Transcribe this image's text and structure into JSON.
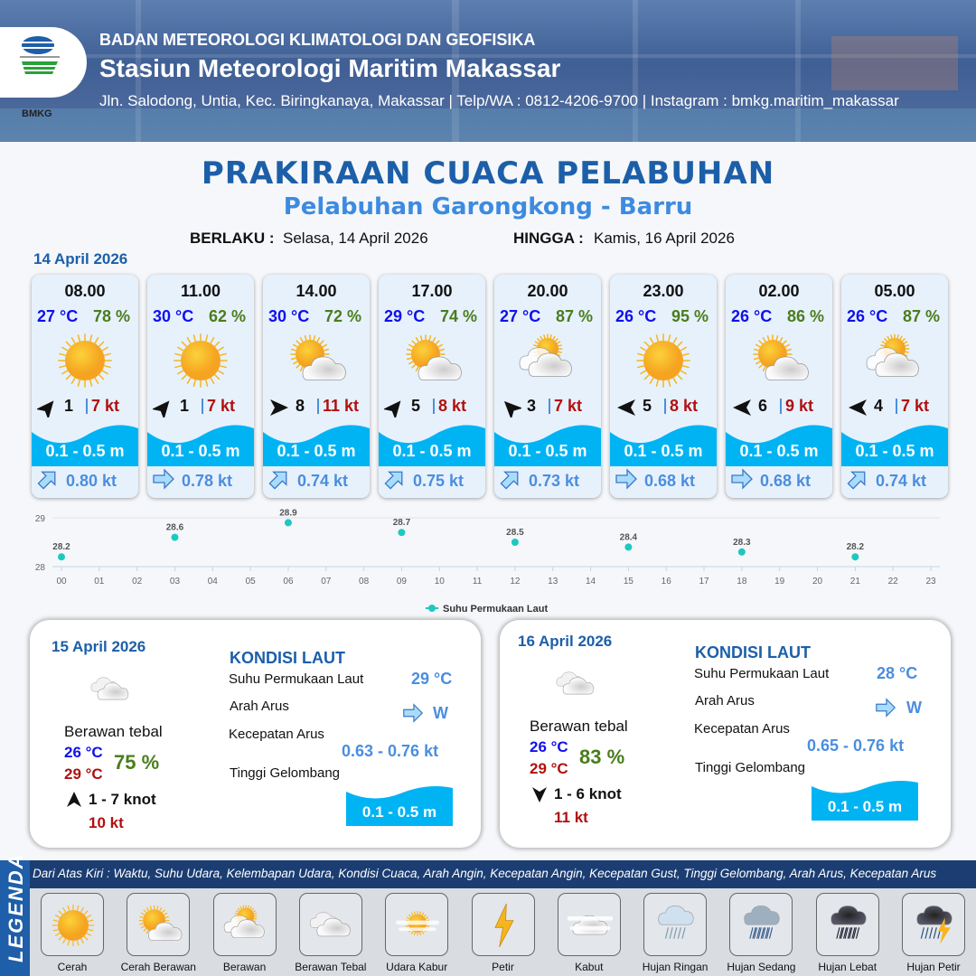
{
  "header": {
    "agency": "BADAN METEOROLOGI KLIMATOLOGI DAN GEOFISIKA",
    "station": "Stasiun Meteorologi Maritim Makassar",
    "contact": "Jln. Salodong, Untia, Kec. Biringkanaya, Makassar | Telp/WA : 0812-4206-9700 | Instagram : bmkg.maritim_makassar",
    "logo_text": "BMKG"
  },
  "title": "PRAKIRAAN CUACA PELABUHAN",
  "subtitle": "Pelabuhan Garongkong - Barru",
  "validity": {
    "from_label": "BERLAKU :",
    "from": "Selasa, 14 April 2026",
    "to_label": "HINGGA :",
    "to": "Kamis, 16 April 2026"
  },
  "day1_label": "14 April 2026",
  "forecasts": [
    {
      "time": "08.00",
      "temp": "27 °C",
      "hum": "78 %",
      "cond": "cerah",
      "wind_dir": "NE",
      "wind": "1",
      "gust": "7 kt",
      "wave": "0.1 - 0.5 m",
      "cur_dir": "SW",
      "cur": "0.80 kt"
    },
    {
      "time": "11.00",
      "temp": "30 °C",
      "hum": "62 %",
      "cond": "cerah",
      "wind_dir": "NE",
      "wind": "1",
      "gust": "7 kt",
      "wave": "0.1 - 0.5 m",
      "cur_dir": "W",
      "cur": "0.78 kt"
    },
    {
      "time": "14.00",
      "temp": "30 °C",
      "hum": "72 %",
      "cond": "cerah-berawan",
      "wind_dir": "E",
      "wind": "8",
      "gust": "11 kt",
      "wave": "0.1 - 0.5 m",
      "cur_dir": "SW",
      "cur": "0.74 kt"
    },
    {
      "time": "17.00",
      "temp": "29 °C",
      "hum": "74 %",
      "cond": "cerah-berawan",
      "wind_dir": "NE",
      "wind": "5",
      "gust": "8 kt",
      "wave": "0.1 - 0.5 m",
      "cur_dir": "SW",
      "cur": "0.75 kt"
    },
    {
      "time": "20.00",
      "temp": "27 °C",
      "hum": "87 %",
      "cond": "berawan",
      "wind_dir": "NW",
      "wind": "3",
      "gust": "7 kt",
      "wave": "0.1 - 0.5 m",
      "cur_dir": "SW",
      "cur": "0.73 kt"
    },
    {
      "time": "23.00",
      "temp": "26 °C",
      "hum": "95 %",
      "cond": "cerah",
      "wind_dir": "W",
      "wind": "5",
      "gust": "8 kt",
      "wave": "0.1 - 0.5 m",
      "cur_dir": "W",
      "cur": "0.68 kt"
    },
    {
      "time": "02.00",
      "temp": "26 °C",
      "hum": "86 %",
      "cond": "cerah-berawan",
      "wind_dir": "W",
      "wind": "6",
      "gust": "9 kt",
      "wave": "0.1 - 0.5 m",
      "cur_dir": "W",
      "cur": "0.68 kt"
    },
    {
      "time": "05.00",
      "temp": "26 °C",
      "hum": "87 %",
      "cond": "berawan",
      "wind_dir": "W",
      "wind": "4",
      "gust": "7 kt",
      "wave": "0.1 - 0.5 m",
      "cur_dir": "SW",
      "cur": "0.74 kt"
    }
  ],
  "chart_data": {
    "type": "scatter",
    "series": [
      {
        "name": "Suhu Permukaan Laut",
        "color": "#1ec8c0",
        "x": [
          "00",
          "03",
          "06",
          "09",
          "12",
          "15",
          "18",
          "21"
        ],
        "values": [
          28.2,
          28.6,
          28.9,
          28.7,
          28.5,
          28.4,
          28.3,
          28.2
        ]
      }
    ],
    "categories": [
      "00",
      "01",
      "02",
      "03",
      "04",
      "05",
      "06",
      "07",
      "08",
      "09",
      "10",
      "11",
      "12",
      "13",
      "14",
      "15",
      "16",
      "17",
      "18",
      "19",
      "20",
      "21",
      "22",
      "23"
    ],
    "yticks": [
      "28",
      "29"
    ],
    "ylim": [
      28,
      29
    ],
    "grid": true,
    "legend": "bottom"
  },
  "days": [
    {
      "date": "15 April 2026",
      "cond": "berawan-tebal",
      "cond_label": "Berawan tebal",
      "tmin": "26 °C",
      "tmax": "29 °C",
      "hum": "75 %",
      "wind_dir": "N",
      "wind": "1  - 7 knot",
      "gust": "10 kt",
      "sea": {
        "title": "KONDISI LAUT",
        "sst_label": "Suhu Permukaan Laut",
        "sst": "29 °C",
        "dir_label": "Arah Arus",
        "dir": "W",
        "speed_label": "Kecepatan Arus",
        "speed": "0.63  - 0.76 kt",
        "wave_label": "Tinggi Gelombang",
        "wave": "0.1 - 0.5 m"
      }
    },
    {
      "date": "16 April 2026",
      "cond": "berawan-tebal",
      "cond_label": "Berawan tebal",
      "tmin": "26 °C",
      "tmax": "29 °C",
      "hum": "83 %",
      "wind_dir": "S",
      "wind": "1  - 6 knot",
      "gust": "11 kt",
      "sea": {
        "title": "KONDISI LAUT",
        "sst_label": "Suhu Permukaan Laut",
        "sst": "28 °C",
        "dir_label": "Arah Arus",
        "dir": "W",
        "speed_label": "Kecepatan Arus",
        "speed": "0.65  - 0.76 kt",
        "wave_label": "Tinggi Gelombang",
        "wave": "0.1 - 0.5 m"
      }
    }
  ],
  "legend": {
    "side_label": "LEGENDA",
    "description": "Dari Atas Kiri : Waktu, Suhu Udara, Kelembapan Udara, Kondisi Cuaca, Arah Angin, Kecepatan Angin, Kecepatan Gust, Tinggi Gelombang, Arah Arus, Kecepatan Arus",
    "items": [
      {
        "icon": "cerah",
        "label": "Cerah"
      },
      {
        "icon": "cerah-berawan",
        "label": "Cerah Berawan"
      },
      {
        "icon": "berawan",
        "label": "Berawan"
      },
      {
        "icon": "berawan-tebal",
        "label": "Berawan Tebal"
      },
      {
        "icon": "udara-kabur",
        "label": "Udara Kabur"
      },
      {
        "icon": "petir",
        "label": "Petir"
      },
      {
        "icon": "kabut",
        "label": "Kabut"
      },
      {
        "icon": "hujan-ringan",
        "label": "Hujan Ringan"
      },
      {
        "icon": "hujan-sedang",
        "label": "Hujan Sedang"
      },
      {
        "icon": "hujan-lebat",
        "label": "Hujan Lebat"
      },
      {
        "icon": "hujan-petir",
        "label": "Hujan Petir"
      }
    ]
  },
  "colors": {
    "title": "#1c5fa8",
    "wave": "#00b4f4",
    "temp": "#1010ee",
    "humidity": "#4a7d1c",
    "gust": "#b01010",
    "current": "#4a8ee0"
  }
}
